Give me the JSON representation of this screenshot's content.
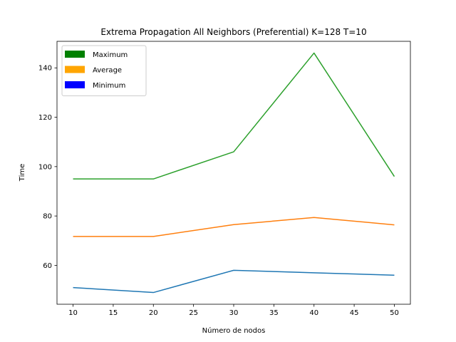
{
  "chart_data": {
    "type": "line",
    "title": "Extrema Propagation All Neighbors (Preferential) K=128 T=10",
    "xlabel": "Número de nodos",
    "ylabel": "Time",
    "x": [
      10,
      20,
      30,
      40,
      50
    ],
    "xlim": [
      8,
      52
    ],
    "ylim": [
      44.25,
      150.75
    ],
    "xticks": [
      10,
      15,
      20,
      25,
      30,
      35,
      40,
      45,
      50
    ],
    "yticks": [
      60,
      80,
      100,
      120,
      140
    ],
    "series": [
      {
        "values": [
          95,
          95,
          106,
          146,
          96
        ],
        "color": "#2ca02c"
      },
      {
        "values": [
          71.7,
          71.7,
          76.5,
          79.4,
          76.4
        ],
        "color": "#ff7f0e"
      },
      {
        "values": [
          51,
          49,
          58,
          57,
          56
        ],
        "color": "#1f77b4"
      }
    ],
    "legend": {
      "placement": "upper-left",
      "entries": [
        {
          "label": "Maximum",
          "color": "#008000"
        },
        {
          "label": "Average",
          "color": "#ffa500"
        },
        {
          "label": "Minimum",
          "color": "#0000ff"
        }
      ]
    },
    "grid": false
  }
}
